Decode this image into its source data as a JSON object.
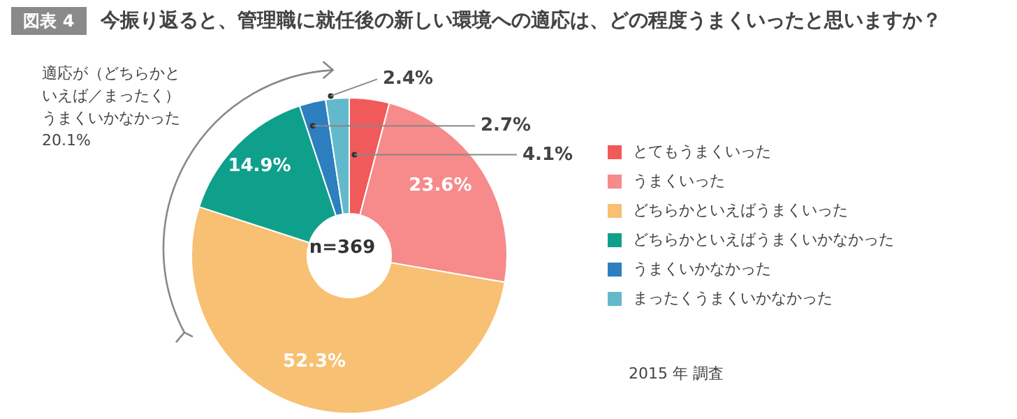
{
  "chart_data": {
    "type": "donut",
    "title": "今振り返ると、管理職に就任後の新しい環境への適応は、どの程度うまくいったと思いますか？",
    "categories": [
      "とてもうまくいった",
      "うまくいった",
      "どちらかといえばうまくいった",
      "どちらかといえばうまくいかなかった",
      "うまくいかなかった",
      "まったくうまくいかなかった"
    ],
    "values": [
      4.1,
      23.6,
      52.3,
      14.9,
      2.7,
      2.4
    ],
    "colors": [
      "#f05a5a",
      "#f78a8a",
      "#f8c072",
      "#0fa08c",
      "#2d7fbf",
      "#62b9cb"
    ],
    "value_labels": [
      "4.1%",
      "23.6%",
      "52.3%",
      "14.9%",
      "2.7%",
      "2.4%"
    ],
    "legend": "right",
    "annotations": [
      "図表 4",
      "n=369",
      "適応が（どちらかといえば／まったく）うまくいかなかった20.1%",
      "2015 年 調査"
    ]
  }
}
